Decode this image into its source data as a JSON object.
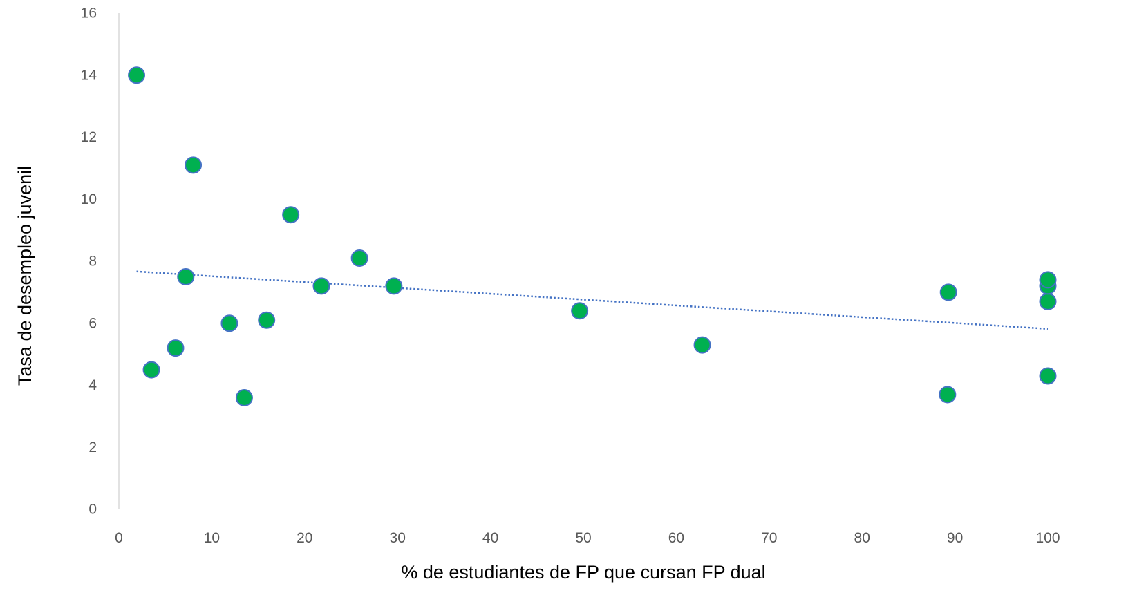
{
  "chart_data": {
    "type": "scatter",
    "title": "",
    "xlabel": "% de estudiantes de FP que cursan FP dual",
    "ylabel": "Tasa de desempleo juvenil",
    "xlim": [
      0,
      100
    ],
    "ylim": [
      0,
      16
    ],
    "x_ticks": [
      0,
      10,
      20,
      30,
      40,
      50,
      60,
      70,
      80,
      90,
      100
    ],
    "y_ticks": [
      0,
      2,
      4,
      6,
      8,
      10,
      12,
      14,
      16
    ],
    "grid": false,
    "legend": "none",
    "series": [
      {
        "points": [
          {
            "x": 1.9,
            "y": 14.0
          },
          {
            "x": 3.5,
            "y": 4.5
          },
          {
            "x": 6.1,
            "y": 5.2
          },
          {
            "x": 7.2,
            "y": 7.5
          },
          {
            "x": 8.0,
            "y": 11.1
          },
          {
            "x": 11.9,
            "y": 6.0
          },
          {
            "x": 13.5,
            "y": 3.6
          },
          {
            "x": 15.9,
            "y": 6.1
          },
          {
            "x": 18.5,
            "y": 9.5
          },
          {
            "x": 21.8,
            "y": 7.2
          },
          {
            "x": 25.9,
            "y": 8.1
          },
          {
            "x": 29.6,
            "y": 7.2
          },
          {
            "x": 49.6,
            "y": 6.4
          },
          {
            "x": 62.8,
            "y": 5.3
          },
          {
            "x": 89.2,
            "y": 3.7
          },
          {
            "x": 89.3,
            "y": 7.0
          },
          {
            "x": 100.0,
            "y": 4.3
          },
          {
            "x": 100.0,
            "y": 6.7
          },
          {
            "x": 100.0,
            "y": 7.2
          },
          {
            "x": 100.0,
            "y": 7.4
          }
        ]
      }
    ],
    "trendline": {
      "type": "linear",
      "style": "dotted",
      "x_start": 1.9,
      "y_start": 7.67,
      "x_end": 100.0,
      "y_end": 5.82
    },
    "colors": {
      "marker_fill": "#00b050",
      "marker_stroke": "#4472c4",
      "trendline": "#4472c4",
      "axis_line": "#d9d9d9",
      "tick_text": "#595959",
      "axis_title_text": "#000000"
    }
  }
}
